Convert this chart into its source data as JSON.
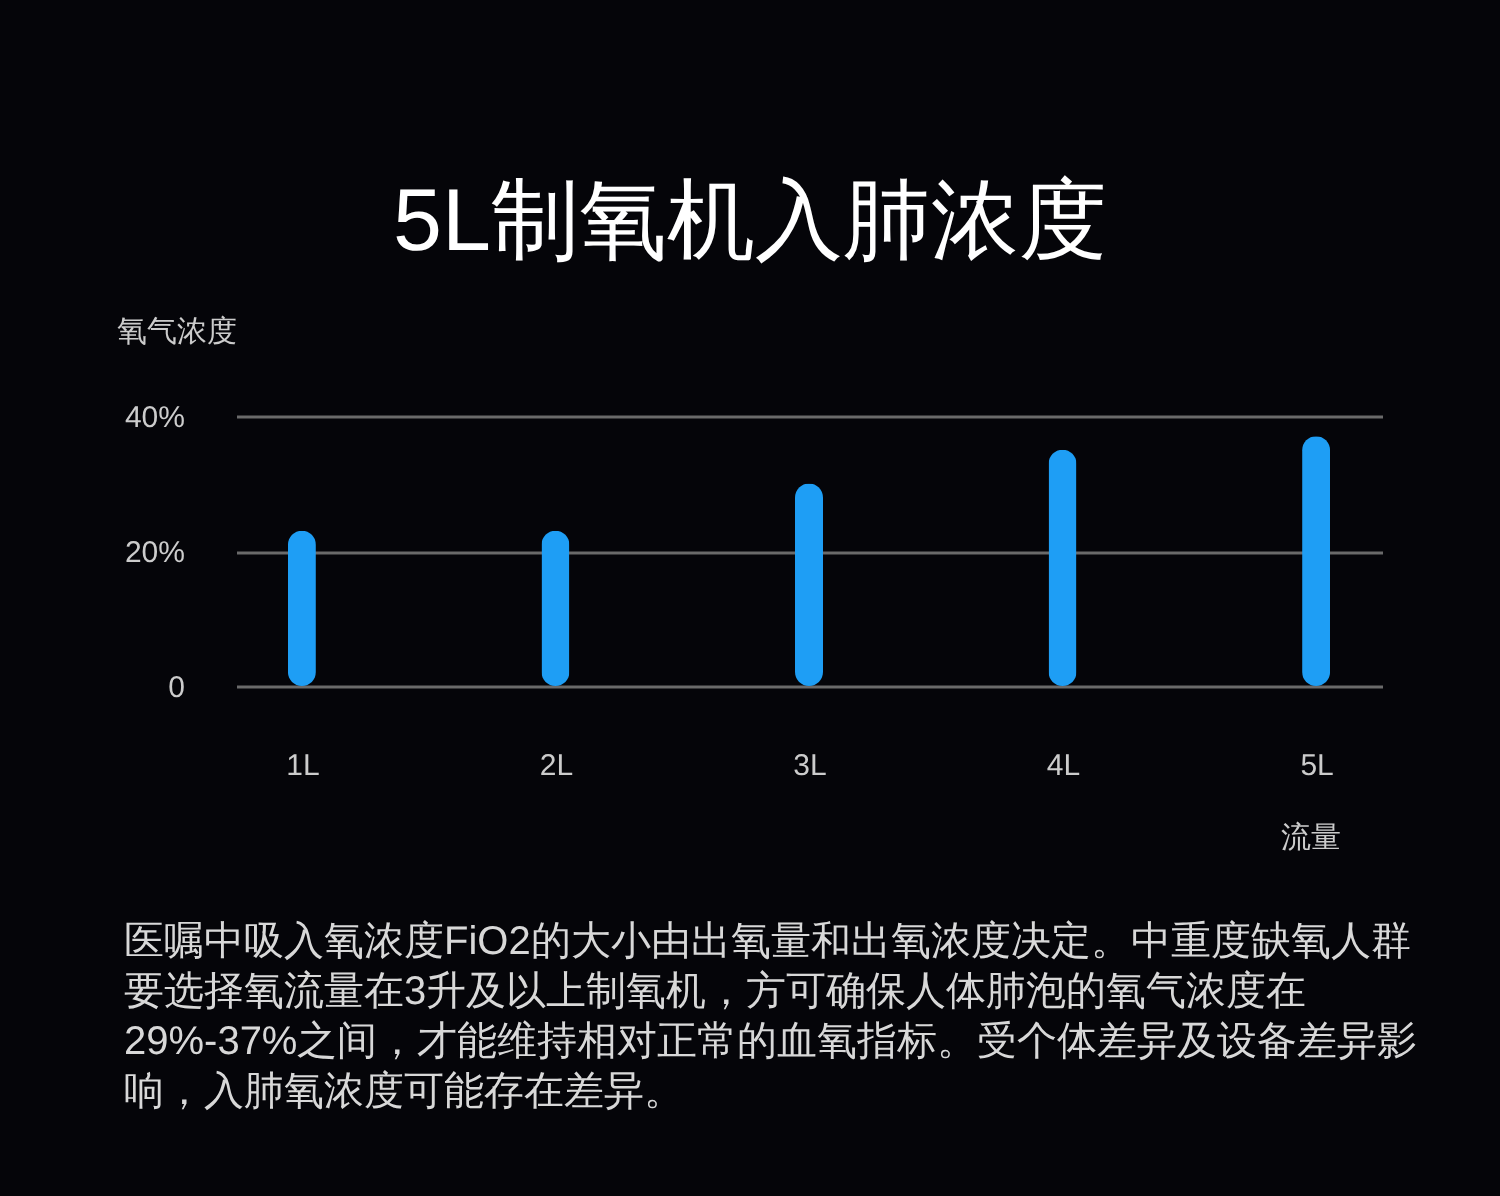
{
  "chart_data": {
    "type": "bar",
    "title": "5L制氧机入肺浓度",
    "ylabel": "氧气浓度",
    "xlabel": "流量",
    "categories": [
      "1L",
      "2L",
      "3L",
      "4L",
      "5L"
    ],
    "values": [
      23,
      23,
      30,
      35,
      37
    ],
    "color": "#1e9ef5",
    "ylim": [
      0,
      40
    ],
    "yticks": [
      {
        "value": 0,
        "label": "0"
      },
      {
        "value": 20,
        "label": "20%"
      },
      {
        "value": 40,
        "label": "40%"
      }
    ],
    "grid": "y",
    "annotations": [
      "医嘱中吸入氧浓度FiO2的大小由出氧量和出氧浓度决定。中重度缺氧人群要选择氧流量在3升及以上制氧机，方可确保人体肺泡的氧气浓度在29%-37%之间，才能维持相对正常的血氧指标。受个体差异及设备差异影响，入肺氧浓度可能存在差异。"
    ]
  }
}
